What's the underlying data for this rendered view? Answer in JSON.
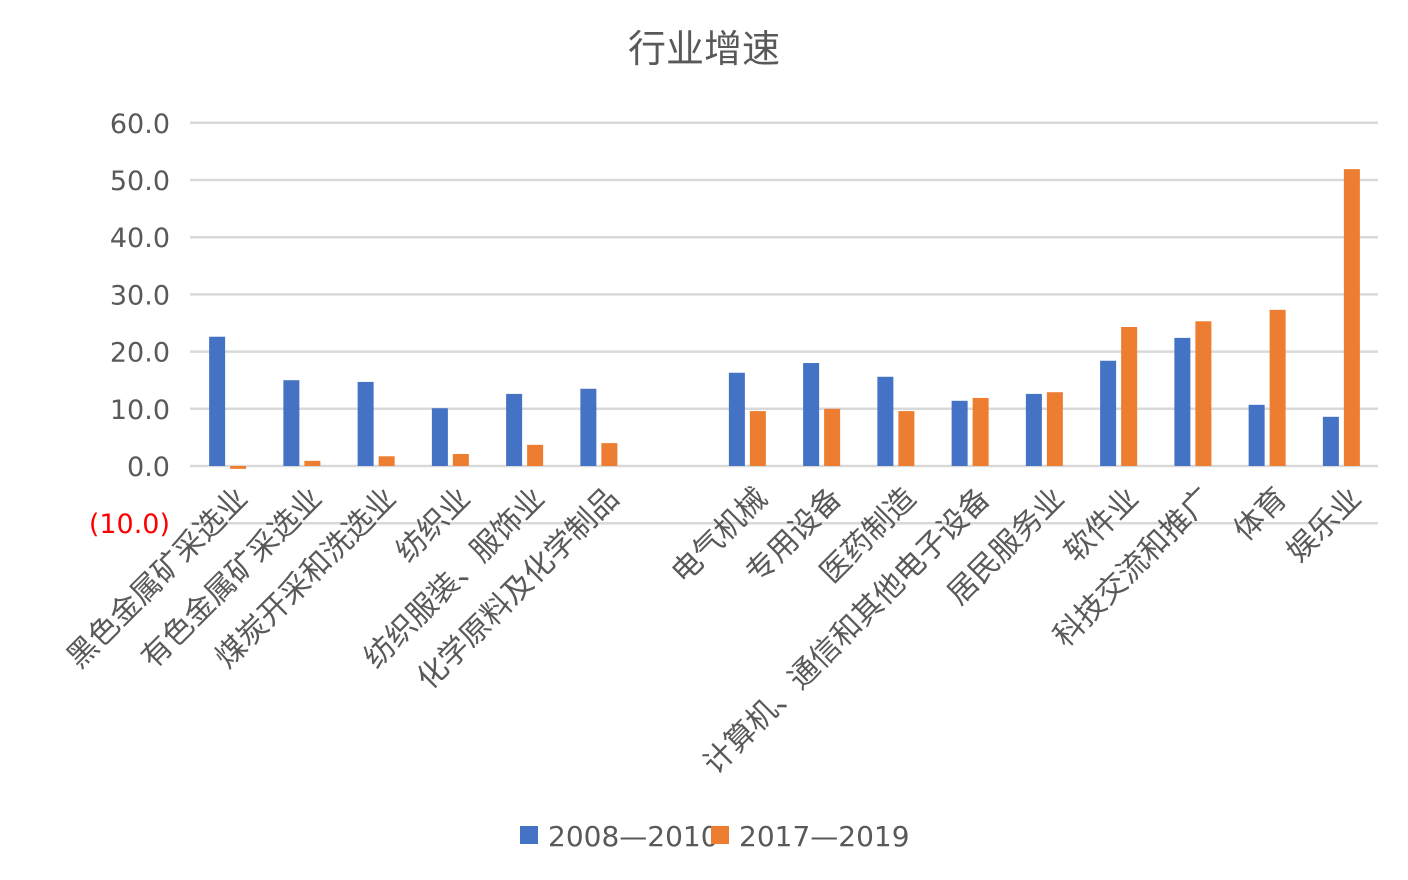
{
  "chart_data": {
    "type": "bar",
    "title": "行业增速",
    "xlabel": "",
    "ylabel": "",
    "ylim": [
      -10,
      60
    ],
    "yticks": [
      {
        "value": 60,
        "label": "60.0"
      },
      {
        "value": 50,
        "label": "50.0"
      },
      {
        "value": 40,
        "label": "40.0"
      },
      {
        "value": 30,
        "label": "30.0"
      },
      {
        "value": 20,
        "label": "20.0"
      },
      {
        "value": 10,
        "label": "10.0"
      },
      {
        "value": 0,
        "label": "0.0"
      },
      {
        "value": -10,
        "label": "(10.0)"
      }
    ],
    "grid": true,
    "legend_position": "bottom",
    "categories": [
      "黑色金属矿采选业",
      "有色金属矿采选业",
      "煤炭开采和洗选业",
      "纺织业",
      "纺织服装、服饰业",
      "化学原料及化学制品",
      "",
      "电气机械",
      "专用设备",
      "医药制造",
      "计算机、通信和其他电子设备",
      "居民服务业",
      "软件业",
      "科技交流和推广",
      "体育",
      "娱乐业"
    ],
    "series": [
      {
        "name": "2008—2010",
        "color": "#4472C4",
        "values": [
          22.6,
          15.0,
          14.7,
          10.1,
          12.6,
          13.5,
          null,
          16.3,
          18.0,
          15.6,
          11.4,
          12.6,
          18.4,
          22.4,
          10.7,
          8.6
        ]
      },
      {
        "name": "2017—2019",
        "color": "#ED7D31",
        "values": [
          -0.5,
          0.9,
          1.7,
          2.1,
          3.7,
          4.0,
          null,
          9.6,
          10.0,
          9.6,
          11.9,
          12.9,
          24.3,
          25.3,
          27.3,
          51.9
        ]
      }
    ],
    "negative_label_color": "#FF0000"
  }
}
